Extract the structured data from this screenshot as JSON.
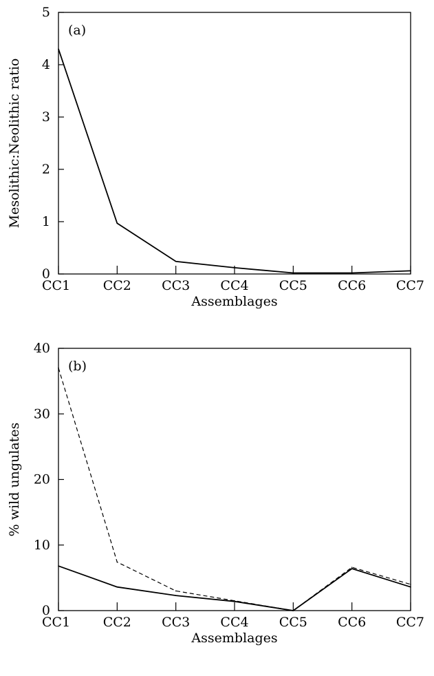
{
  "chart_data": [
    {
      "type": "line",
      "panel_label": "(a)",
      "xlabel": "Assemblages",
      "ylabel": "Mesolithic:Neolithic ratio",
      "categories": [
        "CC1",
        "CC2",
        "CC3",
        "CC4",
        "CC5",
        "CC6",
        "CC7"
      ],
      "ylim": [
        0,
        5
      ],
      "yticks": [
        "0",
        "1",
        "2",
        "3",
        "4",
        "5"
      ],
      "grid": false,
      "series": [
        {
          "style": "solid",
          "values": [
            4.3,
            0.97,
            0.24,
            0.12,
            0.02,
            0.02,
            0.06
          ]
        }
      ]
    },
    {
      "type": "line",
      "panel_label": "(b)",
      "xlabel": "Assemblages",
      "ylabel": "% wild ungulates",
      "categories": [
        "CC1",
        "CC2",
        "CC3",
        "CC4",
        "CC5",
        "CC6",
        "CC7"
      ],
      "ylim": [
        0,
        40
      ],
      "yticks": [
        "0",
        "10",
        "20",
        "30",
        "40"
      ],
      "grid": false,
      "series": [
        {
          "style": "solid",
          "values": [
            6.8,
            3.6,
            2.3,
            1.4,
            0.0,
            6.4,
            3.6
          ]
        },
        {
          "style": "dashed",
          "values": [
            37.0,
            7.4,
            3.0,
            1.5,
            0.0,
            6.6,
            4.0
          ]
        }
      ]
    }
  ]
}
